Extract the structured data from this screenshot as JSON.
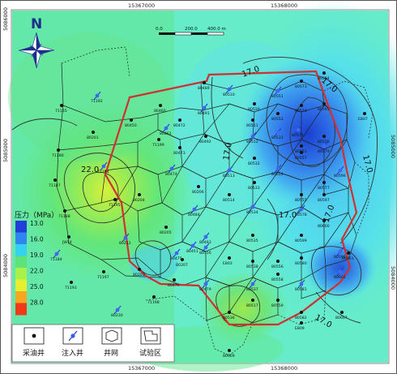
{
  "colors": {
    "field_green": "#5ee37a",
    "field_cyan": "#62f0de",
    "field_blue": "#1f55e0",
    "boundary_red": "#d03030",
    "frame": "#555555"
  },
  "axis_labels": {
    "top_x": [
      "15367000",
      "15368000"
    ],
    "bottom_x": [
      "15367000",
      "15368000"
    ],
    "left_y": [
      "5086000",
      "5085000",
      "5084000"
    ],
    "right_y": [
      "5085000",
      "5084000"
    ]
  },
  "north_arrow": {
    "letter": "N"
  },
  "scale_bar": {
    "labels": [
      "0.0",
      "200.0",
      "400.0 m"
    ]
  },
  "contour_labels": [
    "22.0",
    "17.0",
    "17.0",
    "17.0",
    "17.0",
    "17.0",
    "17.0",
    "17.0"
  ],
  "legend_pressure": {
    "title": "压力（MPa）",
    "values": [
      "13.0",
      "16.0",
      "19.0",
      "22.0",
      "25.0",
      "28.0"
    ],
    "colors": [
      "#1f3fd8",
      "#2f86ee",
      "#34d2ee",
      "#5ee37a",
      "#a8f04a",
      "#e6ee30",
      "#f5a623",
      "#ee3a1a"
    ]
  },
  "legend_symbols": {
    "producer": "采油井",
    "injector": "注入井",
    "pattern": "井网",
    "test_area": "试验区"
  },
  "wells": [
    {
      "name": "71165"
    },
    {
      "name": "71192"
    },
    {
      "name": "80201"
    },
    {
      "name": "71180"
    },
    {
      "name": "71194"
    },
    {
      "name": "71187"
    },
    {
      "name": "71195"
    },
    {
      "name": "71188"
    },
    {
      "name": "JW14"
    },
    {
      "name": "71184"
    },
    {
      "name": "71193"
    },
    {
      "name": "71197"
    },
    {
      "name": "80230"
    },
    {
      "name": "80212"
    },
    {
      "name": "80203"
    },
    {
      "name": "80450"
    },
    {
      "name": "80460"
    },
    {
      "name": "80461"
    },
    {
      "name": "80472"
    },
    {
      "name": "71199"
    },
    {
      "name": "80473"
    },
    {
      "name": "80474"
    },
    {
      "name": "80204"
    },
    {
      "name": "80206"
    },
    {
      "name": "80205"
    },
    {
      "name": "80484"
    },
    {
      "name": "80475"
    },
    {
      "name": "80451"
    },
    {
      "name": "80476"
    },
    {
      "name": "71198"
    },
    {
      "name": "80489"
    },
    {
      "name": "80491"
    },
    {
      "name": "80492"
    },
    {
      "name": "80493"
    },
    {
      "name": "80510"
    },
    {
      "name": "80511"
    },
    {
      "name": "80512"
    },
    {
      "name": "80513"
    },
    {
      "name": "80514"
    },
    {
      "name": "80530"
    },
    {
      "name": "80531"
    },
    {
      "name": "80532"
    },
    {
      "name": "80533"
    },
    {
      "name": "80534"
    },
    {
      "name": "80535"
    },
    {
      "name": "80536"
    },
    {
      "name": "80537"
    },
    {
      "name": "80538"
    },
    {
      "name": "80551"
    },
    {
      "name": "80552"
    },
    {
      "name": "80553"
    },
    {
      "name": "80554"
    },
    {
      "name": "80555"
    },
    {
      "name": "80556"
    },
    {
      "name": "80557"
    },
    {
      "name": "80558"
    },
    {
      "name": "80559"
    },
    {
      "name": "80573"
    },
    {
      "name": "80574"
    },
    {
      "name": "80575"
    },
    {
      "name": "80576"
    },
    {
      "name": "80577"
    },
    {
      "name": "80578"
    },
    {
      "name": "80579"
    },
    {
      "name": "80580"
    },
    {
      "name": "80581"
    },
    {
      "name": "80582"
    },
    {
      "name": "80594"
    },
    {
      "name": "80595"
    },
    {
      "name": "80596"
    },
    {
      "name": "80597"
    },
    {
      "name": "80598"
    },
    {
      "name": "80599"
    },
    {
      "name": "80600"
    },
    {
      "name": "80601"
    },
    {
      "name": "80602"
    },
    {
      "name": "80607"
    },
    {
      "name": "80609"
    },
    {
      "name": "E807"
    },
    {
      "name": "E809"
    },
    {
      "name": "B0207"
    },
    {
      "name": "E803"
    },
    {
      "name": "80479"
    },
    {
      "name": "80516"
    },
    {
      "name": "80517"
    }
  ]
}
